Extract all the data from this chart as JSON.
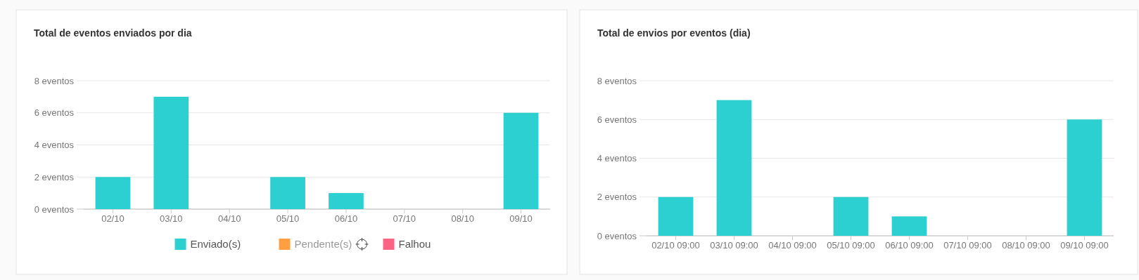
{
  "chart_data": [
    {
      "type": "bar",
      "title": "Total de eventos enviados por dia",
      "stacked": true,
      "categories": [
        "02/10",
        "03/10",
        "04/10",
        "05/10",
        "06/10",
        "07/10",
        "08/10",
        "09/10"
      ],
      "series": [
        {
          "name": "Enviado(s)",
          "color": "#2dd0d0",
          "values": [
            2,
            7,
            0,
            2,
            1,
            0,
            0,
            6
          ]
        },
        {
          "name": "Pendente(s)",
          "color": "#ff9f40",
          "values": [
            0,
            0,
            0,
            0,
            0,
            0,
            0,
            0
          ]
        },
        {
          "name": "Falhou",
          "color": "#ff6384",
          "values": [
            0,
            0,
            0,
            0,
            0,
            0,
            0,
            0
          ]
        }
      ],
      "ylim": [
        0,
        8
      ],
      "yticks": [
        {
          "value": 0,
          "label": "0 eventos"
        },
        {
          "value": 2,
          "label": "2 eventos"
        },
        {
          "value": 4,
          "label": "4 eventos"
        },
        {
          "value": 6,
          "label": "6 eventos"
        },
        {
          "value": 8,
          "label": "8 eventos"
        }
      ],
      "grid": "y",
      "legend": "bottom"
    },
    {
      "type": "bar",
      "title": "Total de envios por eventos (dia)",
      "categories": [
        "02/10 09:00",
        "03/10 09:00",
        "04/10 09:00",
        "05/10 09:00",
        "06/10 09:00",
        "07/10 09:00",
        "08/10 09:00",
        "09/10 09:00"
      ],
      "series": [
        {
          "color": "#2dd0d0",
          "values": [
            2,
            7,
            0,
            2,
            1,
            0,
            0,
            6
          ]
        }
      ],
      "ylim": [
        0,
        8
      ],
      "yticks": [
        {
          "value": 0,
          "label": "0 eventos"
        },
        {
          "value": 2,
          "label": "2 eventos"
        },
        {
          "value": 4,
          "label": "4 eventos"
        },
        {
          "value": 6,
          "label": "6 eventos"
        },
        {
          "value": 8,
          "label": "8 eventos"
        }
      ],
      "grid": "y"
    }
  ]
}
